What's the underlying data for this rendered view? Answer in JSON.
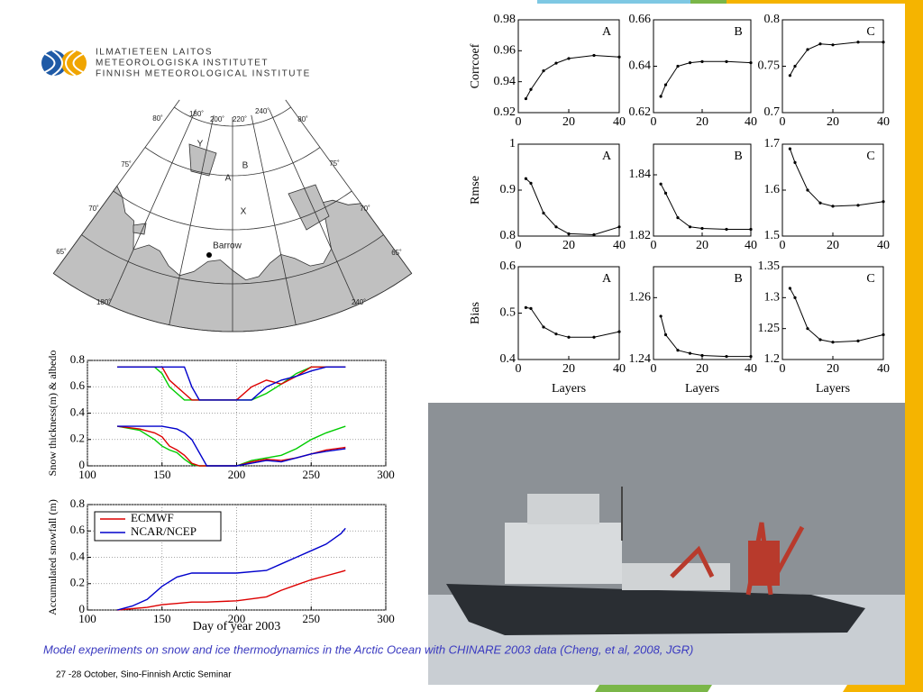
{
  "logo": {
    "lines": [
      "ILMATIETEEN LAITOS",
      "METEOROLOGISKA INSTITUTET",
      "FINNISH METEOROLOGICAL INSTITUTE"
    ]
  },
  "map": {
    "labels": [
      "180˚",
      "200˚",
      "220˚",
      "240˚",
      "80˚",
      "80˚",
      "75˚",
      "75˚",
      "70˚",
      "70˚",
      "65˚",
      "65˚",
      "180˚",
      "240˚",
      "Y",
      "B",
      "A",
      "X",
      "Barrow"
    ]
  },
  "caption": "Model experiments on snow and ice thermodynamics in the Arctic Ocean with CHINARE 2003 data (Cheng,  et al, 2008, JGR)",
  "footer": "27 -28 October, Sino-Finnish Arctic Seminar",
  "chart_data": [
    {
      "type": "line",
      "annotation": "A",
      "ylabel": "Corrcoef",
      "x": [
        3,
        5,
        10,
        15,
        20,
        30,
        40
      ],
      "xlim": [
        0,
        40
      ],
      "xticks": [
        0,
        20,
        40
      ],
      "ylim": [
        0.92,
        0.98
      ],
      "yticks": [
        0.92,
        0.94,
        0.96,
        0.98
      ],
      "series": [
        {
          "color": "#000000",
          "values": [
            0.929,
            0.935,
            0.947,
            0.952,
            0.955,
            0.957,
            0.956
          ]
        }
      ]
    },
    {
      "type": "line",
      "annotation": "B",
      "x": [
        3,
        5,
        10,
        15,
        20,
        30,
        40
      ],
      "xlim": [
        0,
        40
      ],
      "xticks": [
        0,
        20,
        40
      ],
      "ylim": [
        0.62,
        0.66
      ],
      "yticks": [
        0.62,
        0.64,
        0.66
      ],
      "series": [
        {
          "color": "#000000",
          "values": [
            0.627,
            0.632,
            0.64,
            0.6415,
            0.642,
            0.642,
            0.6415
          ]
        }
      ]
    },
    {
      "type": "line",
      "annotation": "C",
      "x": [
        3,
        5,
        10,
        15,
        20,
        30,
        40
      ],
      "xlim": [
        0,
        40
      ],
      "xticks": [
        0,
        20,
        40
      ],
      "ylim": [
        0.7,
        0.8
      ],
      "yticks": [
        0.7,
        0.75,
        0.8
      ],
      "series": [
        {
          "color": "#000000",
          "values": [
            0.74,
            0.75,
            0.768,
            0.774,
            0.773,
            0.776,
            0.776
          ]
        }
      ]
    },
    {
      "type": "line",
      "annotation": "A",
      "ylabel": "Rmse",
      "x": [
        3,
        5,
        10,
        15,
        20,
        30,
        40
      ],
      "xlim": [
        0,
        40
      ],
      "xticks": [
        0,
        20,
        40
      ],
      "ylim": [
        0.8,
        1
      ],
      "yticks": [
        0.8,
        0.9,
        1
      ],
      "series": [
        {
          "color": "#000000",
          "values": [
            0.925,
            0.915,
            0.85,
            0.82,
            0.805,
            0.803,
            0.82
          ]
        }
      ]
    },
    {
      "type": "line",
      "annotation": "B",
      "x": [
        3,
        5,
        10,
        15,
        20,
        30,
        40
      ],
      "xlim": [
        0,
        40
      ],
      "xticks": [
        0,
        20,
        40
      ],
      "ylim": [
        1.82,
        1.85
      ],
      "yticks": [
        1.82,
        1.84
      ],
      "series": [
        {
          "color": "#000000",
          "values": [
            1.837,
            1.834,
            1.826,
            1.823,
            1.8225,
            1.8222,
            1.8222
          ]
        }
      ]
    },
    {
      "type": "line",
      "annotation": "C",
      "x": [
        3,
        5,
        10,
        15,
        20,
        30,
        40
      ],
      "xlim": [
        0,
        40
      ],
      "xticks": [
        0,
        20,
        40
      ],
      "ylim": [
        1.5,
        1.7
      ],
      "yticks": [
        1.5,
        1.6,
        1.7
      ],
      "series": [
        {
          "color": "#000000",
          "values": [
            1.69,
            1.66,
            1.6,
            1.572,
            1.565,
            1.567,
            1.575
          ]
        }
      ]
    },
    {
      "type": "line",
      "annotation": "A",
      "ylabel": "Bias",
      "xlabel": "Layers",
      "x": [
        3,
        5,
        10,
        15,
        20,
        30,
        40
      ],
      "xlim": [
        0,
        40
      ],
      "xticks": [
        0,
        20,
        40
      ],
      "ylim": [
        0.4,
        0.6
      ],
      "yticks": [
        0.4,
        0.5,
        0.6
      ],
      "series": [
        {
          "color": "#000000",
          "values": [
            0.512,
            0.51,
            0.47,
            0.455,
            0.448,
            0.448,
            0.46
          ]
        }
      ]
    },
    {
      "type": "line",
      "annotation": "B",
      "xlabel": "Layers",
      "x": [
        3,
        5,
        10,
        15,
        20,
        30,
        40
      ],
      "xlim": [
        0,
        40
      ],
      "xticks": [
        0,
        20,
        40
      ],
      "ylim": [
        1.24,
        1.27
      ],
      "yticks": [
        1.24,
        1.26
      ],
      "series": [
        {
          "color": "#000000",
          "values": [
            1.254,
            1.248,
            1.243,
            1.242,
            1.2413,
            1.241,
            1.241
          ]
        }
      ]
    },
    {
      "type": "line",
      "annotation": "C",
      "xlabel": "Layers",
      "x": [
        3,
        5,
        10,
        15,
        20,
        30,
        40
      ],
      "xlim": [
        0,
        40
      ],
      "xticks": [
        0,
        20,
        40
      ],
      "ylim": [
        1.2,
        1.35
      ],
      "yticks": [
        1.2,
        1.25,
        1.3,
        1.35
      ],
      "series": [
        {
          "color": "#000000",
          "values": [
            1.315,
            1.3,
            1.25,
            1.232,
            1.228,
            1.23,
            1.24
          ]
        }
      ]
    },
    {
      "type": "line",
      "ylabel": "Snow thickness(m) & albedo",
      "grid": true,
      "x": [
        120,
        135,
        145,
        150,
        155,
        160,
        165,
        170,
        175,
        180,
        200,
        210,
        220,
        230,
        240,
        250,
        260,
        273
      ],
      "xlim": [
        100,
        300
      ],
      "xticks": [
        100,
        150,
        200,
        250,
        300
      ],
      "ylim": [
        0,
        0.8
      ],
      "yticks": [
        0,
        0.2,
        0.4,
        0.6,
        0.8
      ],
      "series": [
        {
          "color": "#00cc00",
          "values": [
            0.75,
            0.75,
            0.75,
            0.7,
            0.6,
            0.55,
            0.5,
            0.5,
            0.5,
            0.5,
            0.5,
            0.5,
            0.55,
            0.62,
            0.7,
            0.75,
            0.75,
            0.75
          ]
        },
        {
          "color": "#dd0000",
          "values": [
            0.75,
            0.75,
            0.75,
            0.75,
            0.65,
            0.6,
            0.55,
            0.5,
            0.5,
            0.5,
            0.5,
            0.6,
            0.65,
            0.62,
            0.68,
            0.75,
            0.75,
            0.75
          ]
        },
        {
          "color": "#0000cc",
          "values": [
            0.75,
            0.75,
            0.75,
            0.75,
            0.75,
            0.75,
            0.75,
            0.6,
            0.5,
            0.5,
            0.5,
            0.5,
            0.6,
            0.65,
            0.68,
            0.72,
            0.75,
            0.75
          ]
        },
        {
          "color": "#00cc00",
          "values": [
            0.3,
            0.27,
            0.2,
            0.15,
            0.12,
            0.1,
            0.05,
            0.01,
            0,
            0,
            0,
            0.04,
            0.06,
            0.08,
            0.13,
            0.2,
            0.25,
            0.3
          ]
        },
        {
          "color": "#dd0000",
          "values": [
            0.3,
            0.28,
            0.25,
            0.22,
            0.15,
            0.12,
            0.08,
            0.02,
            0,
            0,
            0,
            0.03,
            0.05,
            0.04,
            0.06,
            0.09,
            0.12,
            0.14
          ]
        },
        {
          "color": "#0000cc",
          "values": [
            0.3,
            0.3,
            0.3,
            0.3,
            0.29,
            0.28,
            0.25,
            0.2,
            0.1,
            0,
            0,
            0.02,
            0.04,
            0.03,
            0.06,
            0.09,
            0.11,
            0.13
          ]
        }
      ]
    },
    {
      "type": "line",
      "ylabel": "Accumulated snowfall (m)",
      "xlabel": "Day of year 2003",
      "grid": true,
      "legend": "upper left",
      "x": [
        120,
        130,
        140,
        150,
        160,
        170,
        180,
        200,
        220,
        230,
        240,
        250,
        260,
        270,
        273
      ],
      "xlim": [
        100,
        300
      ],
      "xticks": [
        100,
        150,
        200,
        250,
        300
      ],
      "ylim": [
        0,
        0.8
      ],
      "yticks": [
        0,
        0.2,
        0.4,
        0.6,
        0.8
      ],
      "series": [
        {
          "name": "ECMWF",
          "color": "#dd0000",
          "values": [
            0,
            0.01,
            0.02,
            0.04,
            0.05,
            0.06,
            0.06,
            0.07,
            0.1,
            0.15,
            0.19,
            0.23,
            0.26,
            0.29,
            0.3
          ]
        },
        {
          "name": "NCAR/NCEP",
          "color": "#0000cc",
          "values": [
            0,
            0.03,
            0.08,
            0.18,
            0.25,
            0.28,
            0.28,
            0.28,
            0.3,
            0.35,
            0.4,
            0.45,
            0.5,
            0.58,
            0.62
          ]
        }
      ]
    }
  ]
}
